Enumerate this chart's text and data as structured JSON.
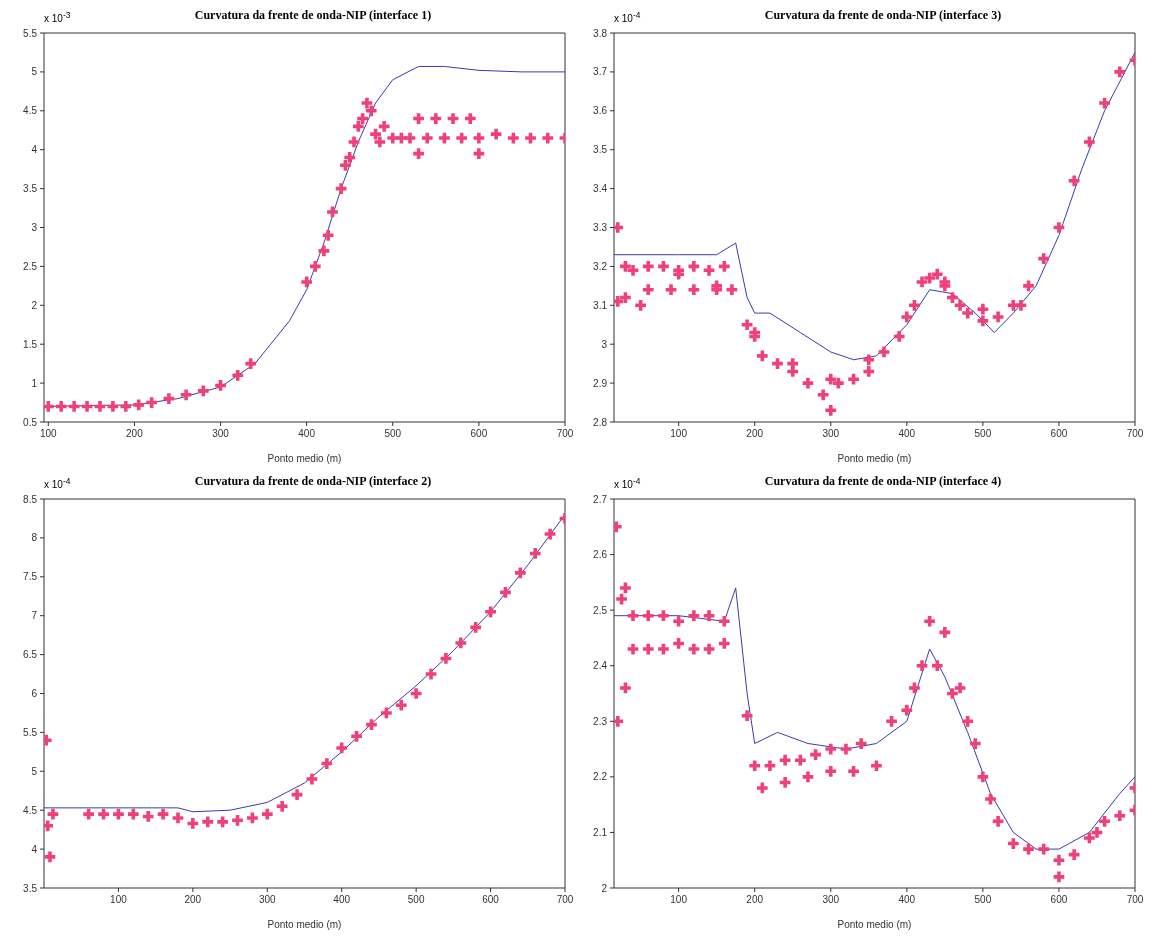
{
  "chart_data": [
    {
      "type": "line",
      "title": "Curvatura da frente de onda-NIP (interface 1)",
      "xlabel": "Ponto medio (m)",
      "annotations": [
        "x 10$^{-3}$"
      ],
      "xlim": [
        95,
        700
      ],
      "xticks": [
        100,
        200,
        300,
        400,
        500,
        600,
        700
      ],
      "ylim": [
        0.5,
        5.5
      ],
      "yticks": [
        0.5,
        1,
        1.5,
        2,
        2.5,
        3,
        3.5,
        4,
        4.5,
        5,
        5.5
      ],
      "grid": false,
      "series": [
        {
          "color": "#3b3bb0",
          "marker": "none",
          "line_style": "solid",
          "x": [
            95,
            200,
            250,
            300,
            340,
            380,
            400,
            420,
            440,
            460,
            480,
            500,
            530,
            560,
            600,
            650,
            700
          ],
          "values": [
            0.7,
            0.72,
            0.8,
            0.95,
            1.25,
            1.8,
            2.2,
            2.8,
            3.5,
            4.1,
            4.6,
            4.9,
            5.07,
            5.07,
            5.02,
            5.0,
            5.0
          ]
        },
        {
          "type": "scatter",
          "color": "#f0407a",
          "marker": "cross",
          "x": [
            100,
            115,
            130,
            145,
            160,
            175,
            190,
            205,
            220,
            240,
            260,
            280,
            300,
            320,
            335,
            400,
            410,
            420,
            425,
            430,
            440,
            445,
            450,
            455,
            460,
            465,
            470,
            475,
            480,
            485,
            490,
            500,
            510,
            520,
            540,
            560,
            580,
            600,
            620,
            640,
            660,
            680,
            700,
            530,
            550,
            570,
            590,
            530,
            600
          ],
          "values": [
            0.7,
            0.7,
            0.7,
            0.7,
            0.7,
            0.7,
            0.7,
            0.72,
            0.75,
            0.8,
            0.85,
            0.9,
            0.97,
            1.1,
            1.25,
            2.3,
            2.5,
            2.7,
            2.9,
            3.2,
            3.5,
            3.8,
            3.9,
            4.1,
            4.3,
            4.4,
            4.6,
            4.5,
            4.2,
            4.1,
            4.3,
            4.15,
            4.15,
            4.15,
            4.15,
            4.15,
            4.15,
            4.15,
            4.2,
            4.15,
            4.15,
            4.15,
            4.15,
            4.4,
            4.4,
            4.4,
            4.4,
            3.95,
            3.95
          ]
        }
      ]
    },
    {
      "type": "line",
      "title": "Curvatura da frente de onda-NIP (interface 3)",
      "xlabel": "Ponto medio (m)",
      "annotations": [
        "x 10$^{-4}$"
      ],
      "xlim": [
        15,
        700
      ],
      "xticks": [
        100,
        200,
        300,
        400,
        500,
        600,
        700
      ],
      "ylim": [
        2.8,
        3.8
      ],
      "yticks": [
        2.8,
        2.9,
        3,
        3.1,
        3.2,
        3.3,
        3.4,
        3.5,
        3.6,
        3.7,
        3.8
      ],
      "grid": false,
      "series": [
        {
          "color": "#3b3bb0",
          "marker": "none",
          "line_style": "solid",
          "x": [
            15,
            100,
            150,
            175,
            190,
            200,
            220,
            260,
            300,
            330,
            360,
            400,
            430,
            460,
            490,
            515,
            540,
            570,
            600,
            630,
            660,
            700
          ],
          "values": [
            3.23,
            3.23,
            3.23,
            3.26,
            3.12,
            3.08,
            3.08,
            3.03,
            2.98,
            2.96,
            2.97,
            3.05,
            3.14,
            3.13,
            3.08,
            3.03,
            3.08,
            3.15,
            3.28,
            3.45,
            3.6,
            3.75
          ]
        },
        {
          "type": "scatter",
          "color": "#f0407a",
          "marker": "cross",
          "x": [
            20,
            30,
            40,
            60,
            80,
            100,
            120,
            140,
            160,
            30,
            60,
            90,
            120,
            150,
            170,
            190,
            200,
            210,
            230,
            250,
            270,
            290,
            300,
            310,
            330,
            350,
            370,
            390,
            410,
            420,
            430,
            440,
            450,
            460,
            470,
            480,
            500,
            520,
            540,
            560,
            580,
            600,
            620,
            640,
            660,
            680,
            700,
            20,
            50,
            100,
            150,
            200,
            250,
            300,
            350,
            400,
            450,
            500,
            550
          ],
          "values": [
            3.3,
            3.2,
            3.19,
            3.2,
            3.2,
            3.19,
            3.2,
            3.19,
            3.2,
            3.12,
            3.14,
            3.14,
            3.14,
            3.14,
            3.14,
            3.05,
            3.02,
            2.97,
            2.95,
            2.93,
            2.9,
            2.87,
            2.91,
            2.9,
            2.91,
            2.93,
            2.98,
            3.02,
            3.1,
            3.16,
            3.17,
            3.18,
            3.16,
            3.12,
            3.1,
            3.08,
            3.06,
            3.07,
            3.1,
            3.15,
            3.22,
            3.3,
            3.42,
            3.52,
            3.62,
            3.7,
            3.73,
            3.11,
            3.1,
            3.18,
            3.15,
            3.03,
            2.95,
            2.83,
            2.96,
            3.07,
            3.15,
            3.09,
            3.1
          ]
        }
      ]
    },
    {
      "type": "line",
      "title": "Curvatura da frente de onda-NIP (interface 2)",
      "xlabel": "Ponto medio (m)",
      "annotations": [
        "x 10$^{-4}$"
      ],
      "xlim": [
        0,
        700
      ],
      "xticks": [
        100,
        200,
        300,
        400,
        500,
        600,
        700
      ],
      "ylim": [
        3.5,
        8.5
      ],
      "yticks": [
        3.5,
        4,
        4.5,
        5,
        5.5,
        6,
        6.5,
        7,
        7.5,
        8,
        8.5
      ],
      "grid": false,
      "series": [
        {
          "color": "#3b3bb0",
          "marker": "none",
          "line_style": "solid",
          "x": [
            0,
            180,
            200,
            250,
            300,
            350,
            400,
            450,
            500,
            550,
            600,
            650,
            700
          ],
          "values": [
            4.53,
            4.53,
            4.48,
            4.5,
            4.6,
            4.85,
            5.25,
            5.7,
            6.1,
            6.55,
            7.05,
            7.65,
            8.3
          ]
        },
        {
          "type": "scatter",
          "color": "#f0407a",
          "marker": "cross",
          "x": [
            3,
            5,
            8,
            12,
            60,
            80,
            100,
            120,
            140,
            160,
            180,
            200,
            220,
            240,
            260,
            280,
            300,
            320,
            340,
            360,
            380,
            400,
            420,
            440,
            460,
            480,
            500,
            520,
            540,
            560,
            580,
            600,
            620,
            640,
            660,
            680,
            700
          ],
          "values": [
            5.4,
            4.3,
            3.9,
            4.45,
            4.45,
            4.45,
            4.45,
            4.45,
            4.42,
            4.45,
            4.4,
            4.33,
            4.35,
            4.35,
            4.37,
            4.4,
            4.45,
            4.55,
            4.7,
            4.9,
            5.1,
            5.3,
            5.45,
            5.6,
            5.75,
            5.85,
            6.0,
            6.25,
            6.45,
            6.65,
            6.85,
            7.05,
            7.3,
            7.55,
            7.8,
            8.05,
            8.25
          ]
        }
      ]
    },
    {
      "type": "line",
      "title": "Curvatura da frente de onda-NIP (interface 4)",
      "xlabel": "Ponto medio (m)",
      "annotations": [
        "x 10$^{-4}$"
      ],
      "xlim": [
        15,
        700
      ],
      "xticks": [
        100,
        200,
        300,
        400,
        500,
        600,
        700
      ],
      "ylim": [
        2,
        2.7
      ],
      "yticks": [
        2,
        2.1,
        2.2,
        2.3,
        2.4,
        2.5,
        2.6,
        2.7
      ],
      "grid": false,
      "series": [
        {
          "color": "#3b3bb0",
          "marker": "none",
          "line_style": "solid",
          "x": [
            15,
            100,
            160,
            175,
            190,
            200,
            230,
            270,
            320,
            360,
            400,
            430,
            450,
            480,
            510,
            540,
            570,
            600,
            640,
            680,
            700
          ],
          "values": [
            2.49,
            2.49,
            2.48,
            2.54,
            2.35,
            2.26,
            2.28,
            2.26,
            2.25,
            2.26,
            2.3,
            2.43,
            2.38,
            2.28,
            2.17,
            2.1,
            2.07,
            2.07,
            2.1,
            2.17,
            2.2
          ]
        },
        {
          "type": "scatter",
          "color": "#f0407a",
          "marker": "cross",
          "x": [
            18,
            20,
            25,
            30,
            40,
            60,
            80,
            100,
            120,
            140,
            160,
            40,
            60,
            80,
            100,
            120,
            140,
            160,
            30,
            190,
            200,
            220,
            240,
            260,
            280,
            300,
            320,
            340,
            210,
            240,
            270,
            300,
            330,
            360,
            380,
            400,
            410,
            420,
            430,
            440,
            450,
            460,
            470,
            480,
            490,
            500,
            510,
            520,
            540,
            560,
            580,
            600,
            620,
            640,
            660,
            680,
            700,
            600,
            650,
            700
          ],
          "values": [
            2.65,
            2.3,
            2.52,
            2.54,
            2.49,
            2.49,
            2.49,
            2.48,
            2.49,
            2.49,
            2.48,
            2.43,
            2.43,
            2.43,
            2.44,
            2.43,
            2.43,
            2.44,
            2.36,
            2.31,
            2.22,
            2.22,
            2.23,
            2.23,
            2.24,
            2.25,
            2.25,
            2.26,
            2.18,
            2.19,
            2.2,
            2.21,
            2.21,
            2.22,
            2.3,
            2.32,
            2.36,
            2.4,
            2.48,
            2.4,
            2.46,
            2.35,
            2.36,
            2.3,
            2.26,
            2.2,
            2.16,
            2.12,
            2.08,
            2.07,
            2.07,
            2.05,
            2.06,
            2.09,
            2.12,
            2.13,
            2.14,
            2.02,
            2.1,
            2.18
          ]
        }
      ]
    }
  ]
}
